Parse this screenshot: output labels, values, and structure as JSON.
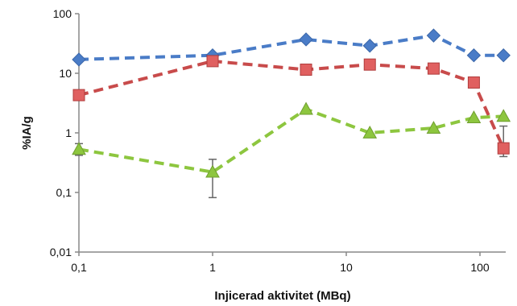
{
  "chart_data": {
    "type": "line",
    "title": "",
    "xlabel": "Injicerad aktivitet (MBq)",
    "ylabel": "%IA/g",
    "x_scale": "log",
    "y_scale": "log",
    "xlim": [
      0.1,
      150
    ],
    "ylim": [
      0.01,
      100
    ],
    "x_ticks": [
      0.1,
      1,
      10,
      100
    ],
    "x_tick_labels": [
      "0,1",
      "1",
      "10",
      "100"
    ],
    "y_ticks": [
      0.01,
      0.1,
      1,
      10,
      100
    ],
    "y_tick_labels": [
      "0,01",
      "0,1",
      "1",
      "10",
      "100"
    ],
    "grid": false,
    "legend": "none",
    "series": [
      {
        "color": "#4a7cc7",
        "marker": "diamond",
        "line_style": "dashed",
        "x": [
          0.1,
          1,
          5,
          15,
          45,
          90,
          150
        ],
        "y": [
          17,
          20,
          37,
          29,
          43,
          20,
          20
        ]
      },
      {
        "color": "#c84b4b",
        "marker": "square",
        "line_style": "dashed",
        "x": [
          0.1,
          1,
          5,
          15,
          45,
          90,
          150
        ],
        "y": [
          4.3,
          16,
          11.5,
          14,
          12,
          7,
          0.55
        ],
        "error_bars": [
          {
            "x": 150,
            "low": 0.4,
            "high": 1.3
          }
        ]
      },
      {
        "color": "#8dc63f",
        "marker": "triangle",
        "line_style": "dashed",
        "x": [
          0.1,
          1,
          5,
          15,
          45,
          90,
          150
        ],
        "y": [
          0.53,
          0.22,
          2.5,
          1.0,
          1.2,
          1.8,
          1.9
        ],
        "error_bars": [
          {
            "x": 0.1,
            "low": 0.42,
            "high": 0.66
          },
          {
            "x": 1,
            "low": 0.082,
            "high": 0.36
          }
        ]
      }
    ]
  }
}
